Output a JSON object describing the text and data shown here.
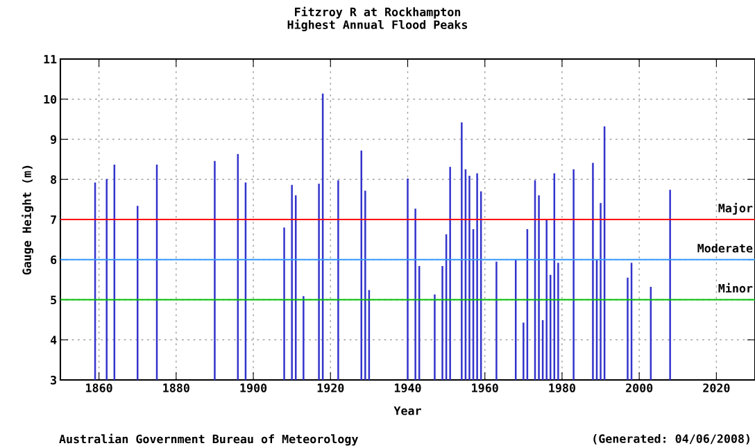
{
  "chart_data": {
    "type": "bar",
    "title": "Fitzroy R at Rockhampton\nHighest Annual Flood Peaks",
    "xlabel": "Year",
    "ylabel": "Gauge Height (m)",
    "x": [
      1859,
      1862,
      1864,
      1870,
      1875,
      1890,
      1896,
      1898,
      1908,
      1910,
      1911,
      1913,
      1917,
      1918,
      1922,
      1928,
      1929,
      1930,
      1940,
      1942,
      1943,
      1947,
      1949,
      1950,
      1951,
      1954,
      1955,
      1956,
      1957,
      1958,
      1959,
      1963,
      1968,
      1970,
      1971,
      1973,
      1974,
      1975,
      1976,
      1977,
      1978,
      1979,
      1983,
      1988,
      1989,
      1990,
      1991,
      1997,
      1998,
      2003,
      2008
    ],
    "values": [
      7.92,
      8.01,
      8.37,
      7.34,
      8.37,
      8.46,
      8.63,
      7.92,
      6.8,
      7.86,
      7.6,
      5.09,
      7.89,
      10.14,
      7.98,
      8.72,
      7.72,
      5.24,
      8.02,
      7.27,
      5.84,
      5.13,
      5.84,
      6.63,
      8.31,
      9.42,
      8.25,
      8.09,
      6.76,
      8.15,
      7.7,
      5.95,
      6.0,
      4.43,
      6.76,
      7.98,
      7.6,
      4.49,
      6.99,
      5.62,
      8.15,
      5.92,
      8.25,
      8.41,
      6.0,
      7.41,
      9.32,
      5.55,
      5.92,
      5.32,
      7.74
    ],
    "color": "#3333cc",
    "xlim": [
      1850,
      2030
    ],
    "xticks": [
      1860,
      1880,
      1900,
      1920,
      1940,
      1960,
      1980,
      2000,
      2020
    ],
    "ylim": [
      3,
      11
    ],
    "yticks": [
      3,
      4,
      5,
      6,
      7,
      8,
      9,
      10,
      11
    ],
    "grid": true,
    "ref_lines": [
      {
        "axis": "y",
        "value": 7,
        "label": "Major",
        "color": "#ff0000"
      },
      {
        "axis": "y",
        "value": 6,
        "label": "Moderate",
        "color": "#3399ff"
      },
      {
        "axis": "y",
        "value": 5,
        "label": "Minor",
        "color": "#00c000"
      }
    ],
    "annotations": [
      "Australian Government Bureau of Meteorology",
      "(Generated: 04/06/2008)"
    ]
  }
}
